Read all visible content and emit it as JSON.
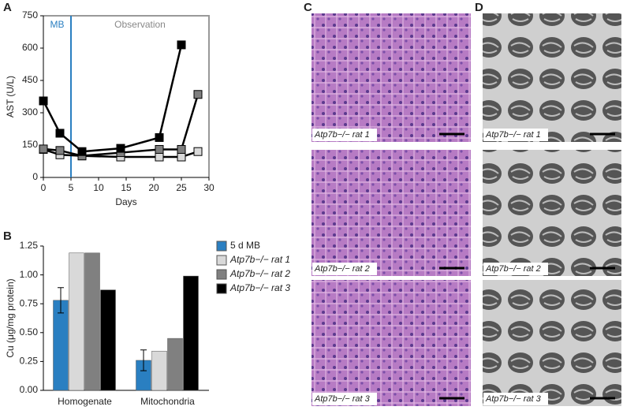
{
  "chart_data": [
    {
      "type": "line",
      "panel_label": "A",
      "xlabel": "Days",
      "ylabel": "AST (U/L)",
      "annotations": [
        "MB",
        "Observation"
      ],
      "phase_line_x": 5,
      "xlim": [
        0,
        30
      ],
      "xticks": [
        0,
        5,
        10,
        15,
        20,
        25,
        30
      ],
      "ylim": [
        0,
        750
      ],
      "yticks": [
        0,
        150,
        300,
        450,
        600,
        750
      ],
      "series": [
        {
          "color": "#d9d9d9",
          "x": [
            0,
            3,
            7,
            14,
            21,
            25,
            28
          ],
          "values": [
            130,
            105,
            100,
            95,
            95,
            95,
            120
          ]
        },
        {
          "color": "#7f7f7f",
          "x": [
            0,
            3,
            7,
            14,
            21,
            25,
            28
          ],
          "values": [
            132,
            125,
            100,
            115,
            130,
            130,
            385
          ]
        },
        {
          "color": "#000000",
          "x": [
            0,
            3,
            7,
            14,
            21,
            25
          ],
          "values": [
            355,
            205,
            120,
            135,
            185,
            615
          ]
        }
      ]
    },
    {
      "type": "bar",
      "panel_label": "B",
      "ylabel": "Cu (μg/mg protein)",
      "categories": [
        "Homogenate",
        "Mitochondria"
      ],
      "ylim": [
        0,
        1.25
      ],
      "yticks": [
        {
          "value": 0,
          "label": "0.00"
        },
        {
          "value": 0.25,
          "label": "0.25"
        },
        {
          "value": 0.5,
          "label": "0.50"
        },
        {
          "value": 0.75,
          "label": "0.75"
        },
        {
          "value": 1,
          "label": "1.00"
        },
        {
          "value": 1.25,
          "label": "1.25"
        }
      ],
      "series": [
        {
          "name": "5 d MB",
          "color": "#2a7fc1",
          "values": [
            0.78,
            0.26
          ],
          "errors": [
            0.11,
            0.09
          ]
        },
        {
          "name": "Atp7b−/− rat 1",
          "color": "#d9d9d9",
          "values": [
            1.19,
            0.34
          ]
        },
        {
          "name": "Atp7b−/− rat 2",
          "color": "#808080",
          "values": [
            1.19,
            0.45
          ]
        },
        {
          "name": "Atp7b−/− rat 3",
          "color": "#000000",
          "values": [
            0.87,
            0.99
          ]
        }
      ]
    }
  ],
  "panels": {
    "C": {
      "label": "C",
      "images": [
        "Atp7b−/− rat 1",
        "Atp7b−/− rat 2",
        "Atp7b−/− rat 3"
      ]
    },
    "D": {
      "label": "D",
      "images": [
        "Atp7b−/− rat 1",
        "Atp7b−/− rat 2",
        "Atp7b−/− rat 3"
      ]
    }
  }
}
